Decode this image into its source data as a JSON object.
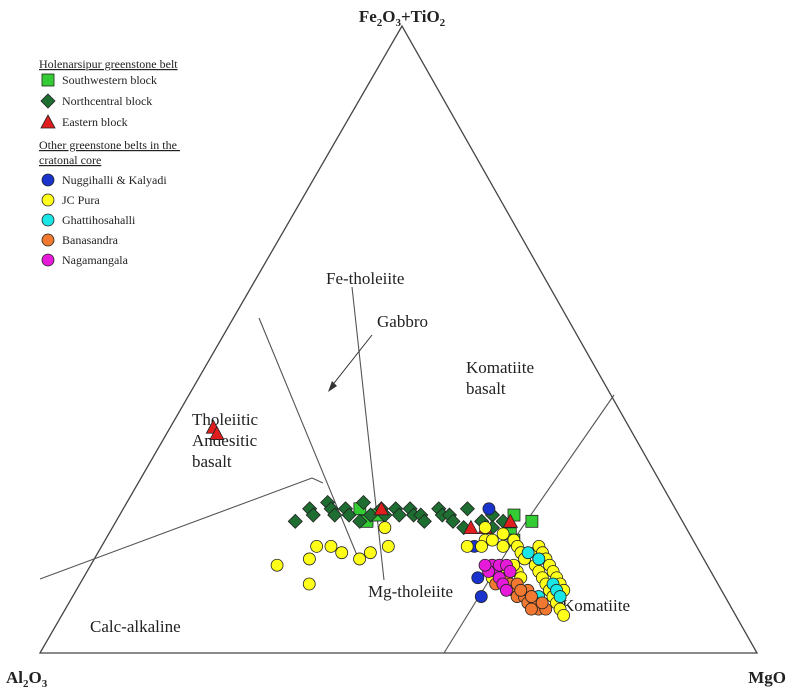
{
  "chart_data": {
    "type": "scatter",
    "subtype": "ternary (Jensen cation plot)",
    "apices": {
      "top": {
        "label": "Fe",
        "sub1": "2",
        "mid": "O",
        "sub2": "3",
        "tail": "+TiO",
        "sub3": "2"
      },
      "left": {
        "label": "Al",
        "sub1": "2",
        "mid": "O",
        "sub2": "3"
      },
      "right": {
        "label": "MgO"
      }
    },
    "fields": {
      "fe_tholeiite": "Fe-tholeiite",
      "mg_tholeiite": "Mg-tholeiite",
      "tholeiitic_andesitic_basalt": [
        "Tholeiitic",
        "Andesitic",
        "basalt"
      ],
      "calc_alkaline": "Calc-alkaline",
      "komatiite_basalt": [
        "Komatiite",
        "basalt"
      ],
      "komatiite": "Komatiite"
    },
    "annotation": {
      "text": "Gabbro"
    },
    "legend": {
      "position": "top-left",
      "group1_title": "Holenarsipur greenstone belt",
      "group2_title": [
        "Other greenstone belts in the",
        "cratonal core"
      ]
    },
    "series": [
      {
        "name": "Southwestern block",
        "marker": "square",
        "color": "#33cc33",
        "group": 1,
        "points": [
          [
            0.33,
            0.23
          ],
          [
            0.35,
            0.21
          ],
          [
            0.36,
            0.22
          ],
          [
            0.58,
            0.21
          ],
          [
            0.55,
            0.22
          ],
          [
            0.56,
            0.19
          ],
          [
            0.57,
            0.18
          ]
        ]
      },
      {
        "name": "Northcentral block",
        "marker": "diamond",
        "color": "#1e6e32",
        "group": 1,
        "points": [
          [
            0.25,
            0.21
          ],
          [
            0.26,
            0.23
          ],
          [
            0.27,
            0.22
          ],
          [
            0.28,
            0.24
          ],
          [
            0.29,
            0.23
          ],
          [
            0.3,
            0.22
          ],
          [
            0.31,
            0.23
          ],
          [
            0.32,
            0.22
          ],
          [
            0.33,
            0.24
          ],
          [
            0.34,
            0.21
          ],
          [
            0.35,
            0.22
          ],
          [
            0.36,
            0.23
          ],
          [
            0.37,
            0.22
          ],
          [
            0.38,
            0.23
          ],
          [
            0.39,
            0.22
          ],
          [
            0.4,
            0.23
          ],
          [
            0.41,
            0.22
          ],
          [
            0.42,
            0.22
          ],
          [
            0.43,
            0.21
          ],
          [
            0.44,
            0.23
          ],
          [
            0.45,
            0.22
          ],
          [
            0.46,
            0.22
          ],
          [
            0.47,
            0.21
          ],
          [
            0.48,
            0.23
          ],
          [
            0.49,
            0.2
          ],
          [
            0.51,
            0.21
          ],
          [
            0.52,
            0.22
          ],
          [
            0.53,
            0.2
          ],
          [
            0.54,
            0.21
          ]
        ]
      },
      {
        "name": "Eastern block",
        "marker": "triangle",
        "color": "#e01e1e",
        "group": 1,
        "points": [
          [
            0.06,
            0.36
          ],
          [
            0.07,
            0.35
          ],
          [
            0.36,
            0.23
          ],
          [
            0.5,
            0.2
          ],
          [
            0.52,
            0.2
          ],
          [
            0.55,
            0.21
          ]
        ]
      },
      {
        "name": "Nuggihalli & Kalyadi",
        "marker": "circle",
        "color": "#1a33cc",
        "group": 2,
        "points": [
          [
            0.52,
            0.17
          ],
          [
            0.57,
            0.14
          ],
          [
            0.55,
            0.12
          ],
          [
            0.57,
            0.09
          ],
          [
            0.51,
            0.23
          ]
        ]
      },
      {
        "name": "JC Pura",
        "marker": "circle",
        "color": "#ffff1a",
        "group": 2,
        "points": [
          [
            0.26,
            0.14
          ],
          [
            0.3,
            0.17
          ],
          [
            0.3,
            0.15
          ],
          [
            0.32,
            0.17
          ],
          [
            0.32,
            0.11
          ],
          [
            0.34,
            0.16
          ],
          [
            0.37,
            0.15
          ],
          [
            0.38,
            0.16
          ],
          [
            0.38,
            0.2
          ],
          [
            0.4,
            0.17
          ],
          [
            0.51,
            0.17
          ],
          [
            0.53,
            0.18
          ],
          [
            0.52,
            0.2
          ],
          [
            0.53,
            0.17
          ],
          [
            0.54,
            0.18
          ],
          [
            0.55,
            0.19
          ],
          [
            0.56,
            0.17
          ],
          [
            0.57,
            0.18
          ],
          [
            0.58,
            0.17
          ],
          [
            0.59,
            0.16
          ],
          [
            0.6,
            0.15
          ],
          [
            0.61,
            0.16
          ],
          [
            0.62,
            0.14
          ],
          [
            0.63,
            0.13
          ],
          [
            0.64,
            0.12
          ],
          [
            0.65,
            0.11
          ],
          [
            0.66,
            0.1
          ],
          [
            0.67,
            0.09
          ],
          [
            0.68,
            0.08
          ],
          [
            0.69,
            0.07
          ],
          [
            0.7,
            0.06
          ],
          [
            0.61,
            0.17
          ],
          [
            0.62,
            0.16
          ],
          [
            0.63,
            0.15
          ],
          [
            0.64,
            0.14
          ],
          [
            0.65,
            0.13
          ],
          [
            0.66,
            0.12
          ],
          [
            0.67,
            0.11
          ],
          [
            0.68,
            0.1
          ],
          [
            0.6,
            0.13
          ],
          [
            0.61,
            0.12
          ],
          [
            0.59,
            0.14
          ],
          [
            0.58,
            0.13
          ],
          [
            0.57,
            0.12
          ],
          [
            0.56,
            0.14
          ]
        ]
      },
      {
        "name": "Ghattihosahalli",
        "marker": "circle",
        "color": "#1ae6e6",
        "group": 2,
        "points": [
          [
            0.62,
            0.15
          ],
          [
            0.66,
            0.11
          ],
          [
            0.67,
            0.1
          ],
          [
            0.68,
            0.09
          ],
          [
            0.6,
            0.16
          ],
          [
            0.65,
            0.09
          ]
        ]
      },
      {
        "name": "Banasandra",
        "marker": "circle",
        "color": "#f07830",
        "group": 2,
        "points": [
          [
            0.59,
            0.12
          ],
          [
            0.6,
            0.11
          ],
          [
            0.61,
            0.1
          ],
          [
            0.62,
            0.09
          ],
          [
            0.63,
            0.09
          ],
          [
            0.64,
            0.08
          ],
          [
            0.65,
            0.08
          ],
          [
            0.66,
            0.07
          ],
          [
            0.67,
            0.07
          ],
          [
            0.58,
            0.11
          ],
          [
            0.63,
            0.1
          ],
          [
            0.61,
            0.11
          ],
          [
            0.62,
            0.1
          ],
          [
            0.64,
            0.09
          ],
          [
            0.65,
            0.07
          ],
          [
            0.66,
            0.08
          ]
        ]
      },
      {
        "name": "Nagamangala",
        "marker": "circle",
        "color": "#e61ad9",
        "group": 2,
        "points": [
          [
            0.56,
            0.14
          ],
          [
            0.57,
            0.13
          ],
          [
            0.58,
            0.12
          ],
          [
            0.59,
            0.11
          ],
          [
            0.56,
            0.13
          ],
          [
            0.57,
            0.14
          ],
          [
            0.58,
            0.14
          ],
          [
            0.55,
            0.14
          ],
          [
            0.6,
            0.1
          ],
          [
            0.59,
            0.13
          ]
        ]
      }
    ]
  }
}
